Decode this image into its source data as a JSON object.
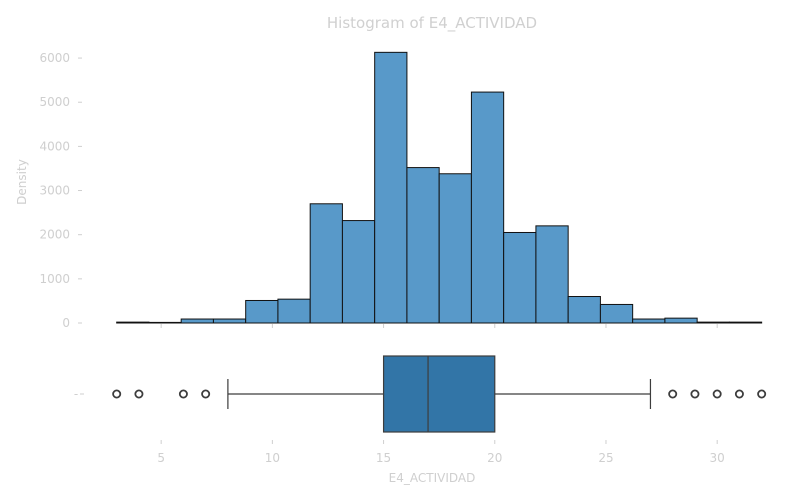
{
  "chart_data": [
    {
      "type": "histogram",
      "title": "Histogram of E4_ACTIVIDAD",
      "xlabel": "",
      "ylabel": "Density",
      "ylim": [
        0,
        6500
      ],
      "yticks": [
        0,
        1000,
        2000,
        3000,
        4000,
        5000,
        6000
      ],
      "bin_edges": [
        3.0,
        4.45,
        5.9,
        7.35,
        8.8,
        10.25,
        11.7,
        13.15,
        14.6,
        16.05,
        17.5,
        18.95,
        20.4,
        21.85,
        23.3,
        24.75,
        26.2,
        27.65,
        29.1,
        30.55,
        32.0
      ],
      "values": [
        20,
        0,
        90,
        90,
        510,
        540,
        2700,
        2320,
        6130,
        3520,
        3380,
        5230,
        2050,
        2200,
        600,
        420,
        90,
        110,
        20,
        20
      ],
      "bar_color": "#5899c9"
    },
    {
      "type": "boxplot",
      "xlabel": "E4_ACTIVIDAD",
      "y_category_label": "-",
      "xlim": [
        1.8,
        32.6
      ],
      "xticks": [
        5,
        10,
        15,
        20,
        25,
        30
      ],
      "min_whisker": 8,
      "q1": 15,
      "median": 17,
      "q3": 20,
      "max_whisker": 27,
      "outliers": [
        3,
        4,
        6,
        7,
        28,
        29,
        30,
        31,
        32
      ],
      "box_color": "#3275a7"
    }
  ]
}
